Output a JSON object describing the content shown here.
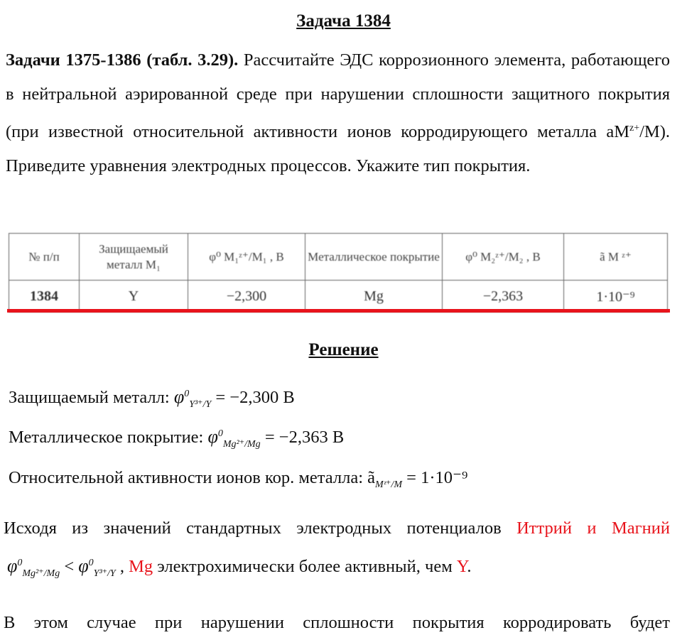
{
  "title": "Задача 1384",
  "task": {
    "bold": "Задачи 1375-1386 (табл. 3.29).",
    "text1": " Рассчитайте ЭДС коррозионного элемента, работающего в нейтральной аэрированной среде при нарушении сплошности защитного покрытия (при известной относительной активности ионов корродирующего металла aM",
    "sup": "z+",
    "text2": "/M). Приведите уравнения электродных процессов. Укажите тип покрытия."
  },
  "table": {
    "headers": [
      "№ п/п",
      "Защищаемый металл M₁",
      "φ⁰ M₁ᶻ⁺/M₁ , В",
      "Металлическое покрытие",
      "φ⁰ M₂ᶻ⁺/M₂ , В",
      "ã M ᶻ⁺"
    ],
    "row": [
      "1384",
      "Y",
      "−2,300",
      "Mg",
      "−2,363",
      "1·10⁻⁹"
    ]
  },
  "solution_title": "Решение",
  "lines": {
    "l1_label": "Защищаемый металл: ",
    "l1_sub": "Y³⁺/Y",
    "l1_val": " = −2,300 В",
    "l2_label": "Металлическое покрытие: ",
    "l2_sub": "Mg²⁺/Mg",
    "l2_val": " = −2,363 В",
    "l3_label": "Относительной активности ионов кор. металла: ",
    "l3_sub": "Mᶻ⁺/M",
    "l3_val": " = 1·10⁻⁹"
  },
  "p1": {
    "text": "Исходя из значений стандартных электродных потенциалов ",
    "red": "Иттрий и Магний"
  },
  "p2": {
    "sub1": "Mg²⁺/Mg",
    "lt": " < ",
    "sub2": "Y³⁺/Y",
    "comma": " , ",
    "mg": "Mg",
    "mid": " электрохимически более активный, чем ",
    "y": "Y",
    "end": "."
  },
  "p3": "В этом случае при нарушении сплошности покрытия корродировать будет",
  "phi": "φ",
  "zero": "0",
  "a": "ã"
}
